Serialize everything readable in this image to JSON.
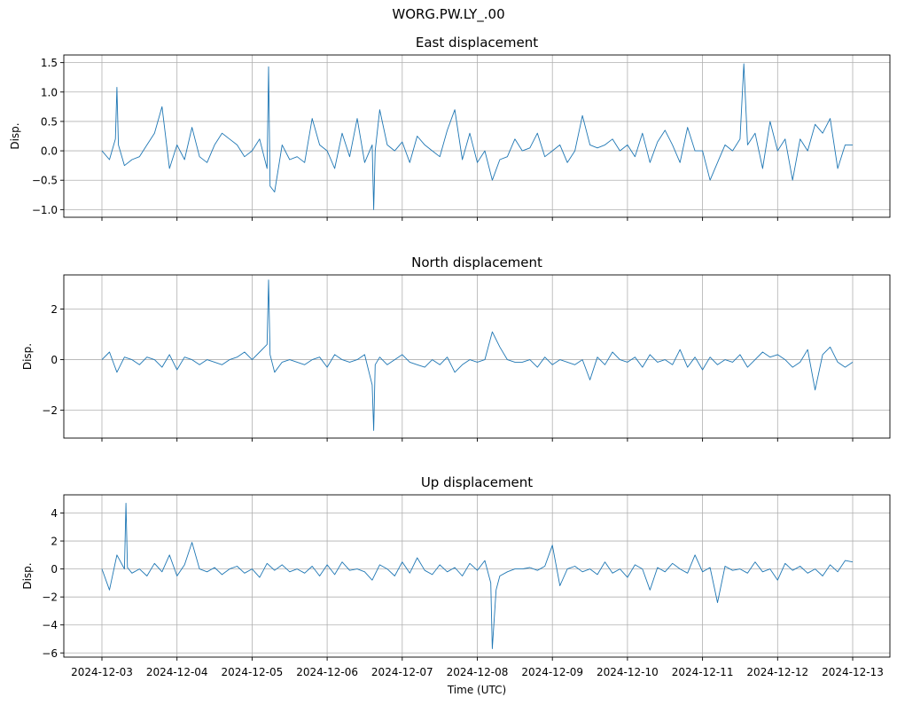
{
  "figure_title": "WORG.PW.LY_.00",
  "chart_data": [
    {
      "type": "line",
      "title": "East displacement",
      "ylabel": "Disp.",
      "xlabel": "",
      "series_color": "#1f77b4",
      "grid": true,
      "xlim": [
        0,
        10
      ],
      "ylim": [
        -1.13,
        1.63
      ],
      "yticks": [
        -1.0,
        -0.5,
        0.0,
        0.5,
        1.0,
        1.5
      ],
      "ytick_labels": [
        "−1.0",
        "−0.5",
        "0.0",
        "0.5",
        "1.0",
        "1.5"
      ],
      "x": [
        0.0,
        0.1,
        0.18,
        0.2,
        0.22,
        0.3,
        0.4,
        0.5,
        0.6,
        0.7,
        0.8,
        0.9,
        1.0,
        1.1,
        1.2,
        1.3,
        1.4,
        1.5,
        1.6,
        1.7,
        1.8,
        1.9,
        2.0,
        2.1,
        2.2,
        2.22,
        2.24,
        2.3,
        2.4,
        2.5,
        2.6,
        2.7,
        2.8,
        2.9,
        3.0,
        3.1,
        3.2,
        3.3,
        3.4,
        3.5,
        3.6,
        3.62,
        3.64,
        3.7,
        3.8,
        3.9,
        4.0,
        4.1,
        4.2,
        4.3,
        4.4,
        4.5,
        4.6,
        4.7,
        4.8,
        4.9,
        5.0,
        5.1,
        5.2,
        5.3,
        5.4,
        5.5,
        5.6,
        5.7,
        5.8,
        5.9,
        6.0,
        6.1,
        6.2,
        6.3,
        6.4,
        6.5,
        6.6,
        6.7,
        6.8,
        6.9,
        7.0,
        7.1,
        7.2,
        7.3,
        7.4,
        7.5,
        7.6,
        7.7,
        7.8,
        7.9,
        8.0,
        8.1,
        8.2,
        8.3,
        8.4,
        8.5,
        8.55,
        8.6,
        8.7,
        8.8,
        8.9,
        9.0,
        9.1,
        9.2,
        9.3,
        9.4,
        9.5,
        9.6,
        9.7,
        9.8,
        9.9,
        10.0
      ],
      "values": [
        0.0,
        -0.15,
        0.2,
        1.08,
        0.1,
        -0.25,
        -0.15,
        -0.1,
        0.1,
        0.3,
        0.75,
        -0.3,
        0.1,
        -0.15,
        0.4,
        -0.1,
        -0.2,
        0.1,
        0.3,
        0.2,
        0.1,
        -0.1,
        0.0,
        0.2,
        -0.3,
        1.43,
        -0.6,
        -0.7,
        0.1,
        -0.15,
        -0.1,
        -0.2,
        0.55,
        0.1,
        0.0,
        -0.3,
        0.3,
        -0.1,
        0.55,
        -0.2,
        0.1,
        -1.0,
        0.0,
        0.7,
        0.1,
        0.0,
        0.15,
        -0.2,
        0.25,
        0.1,
        0.0,
        -0.1,
        0.35,
        0.7,
        -0.15,
        0.3,
        -0.2,
        0.0,
        -0.5,
        -0.15,
        -0.1,
        0.2,
        0.0,
        0.05,
        0.3,
        -0.1,
        0.0,
        0.1,
        -0.2,
        0.0,
        0.6,
        0.1,
        0.05,
        0.1,
        0.2,
        0.0,
        0.1,
        -0.1,
        0.3,
        -0.2,
        0.15,
        0.35,
        0.1,
        -0.2,
        0.4,
        0.0,
        0.0,
        -0.5,
        -0.2,
        0.1,
        0.0,
        0.2,
        1.48,
        0.1,
        0.3,
        -0.3,
        0.5,
        0.0,
        0.2,
        -0.5,
        0.2,
        0.0,
        0.45,
        0.3,
        0.55,
        -0.3,
        0.1,
        0.1
      ]
    },
    {
      "type": "line",
      "title": "North displacement",
      "ylabel": "Disp.",
      "xlabel": "",
      "series_color": "#1f77b4",
      "grid": true,
      "xlim": [
        0,
        10
      ],
      "ylim": [
        -3.1,
        3.35
      ],
      "yticks": [
        -2,
        0,
        2
      ],
      "ytick_labels": [
        "−2",
        "0",
        "2"
      ],
      "x": [
        0.0,
        0.1,
        0.2,
        0.3,
        0.4,
        0.5,
        0.6,
        0.7,
        0.8,
        0.9,
        1.0,
        1.1,
        1.2,
        1.3,
        1.4,
        1.5,
        1.6,
        1.7,
        1.8,
        1.9,
        2.0,
        2.1,
        2.2,
        2.22,
        2.24,
        2.3,
        2.4,
        2.5,
        2.6,
        2.7,
        2.8,
        2.9,
        3.0,
        3.1,
        3.2,
        3.3,
        3.4,
        3.5,
        3.6,
        3.62,
        3.64,
        3.7,
        3.8,
        3.9,
        4.0,
        4.1,
        4.2,
        4.3,
        4.4,
        4.5,
        4.6,
        4.7,
        4.8,
        4.9,
        5.0,
        5.1,
        5.2,
        5.3,
        5.4,
        5.5,
        5.6,
        5.7,
        5.8,
        5.9,
        6.0,
        6.1,
        6.2,
        6.3,
        6.4,
        6.5,
        6.6,
        6.7,
        6.8,
        6.9,
        7.0,
        7.1,
        7.2,
        7.3,
        7.4,
        7.5,
        7.6,
        7.7,
        7.8,
        7.9,
        8.0,
        8.1,
        8.2,
        8.3,
        8.4,
        8.5,
        8.6,
        8.7,
        8.8,
        8.9,
        9.0,
        9.1,
        9.2,
        9.3,
        9.4,
        9.5,
        9.6,
        9.7,
        9.8,
        9.9,
        10.0
      ],
      "values": [
        0.0,
        0.3,
        -0.5,
        0.1,
        0.0,
        -0.2,
        0.1,
        0.0,
        -0.3,
        0.2,
        -0.4,
        0.1,
        0.0,
        -0.2,
        0.0,
        -0.1,
        -0.2,
        0.0,
        0.1,
        0.3,
        0.0,
        0.3,
        0.6,
        3.15,
        0.2,
        -0.5,
        -0.1,
        0.0,
        -0.1,
        -0.2,
        0.0,
        0.1,
        -0.3,
        0.2,
        0.0,
        -0.1,
        0.0,
        0.2,
        -1.0,
        -2.8,
        -0.2,
        0.1,
        -0.2,
        0.0,
        0.2,
        -0.1,
        -0.2,
        -0.3,
        0.0,
        -0.2,
        0.1,
        -0.5,
        -0.2,
        0.0,
        -0.1,
        0.0,
        1.1,
        0.5,
        0.0,
        -0.1,
        -0.1,
        0.0,
        -0.3,
        0.1,
        -0.2,
        0.0,
        -0.1,
        -0.2,
        0.0,
        -0.8,
        0.1,
        -0.2,
        0.3,
        0.0,
        -0.1,
        0.1,
        -0.3,
        0.2,
        -0.1,
        0.0,
        -0.2,
        0.4,
        -0.3,
        0.1,
        -0.4,
        0.1,
        -0.2,
        0.0,
        -0.1,
        0.2,
        -0.3,
        0.0,
        0.3,
        0.1,
        0.2,
        0.0,
        -0.3,
        -0.1,
        0.4,
        -1.2,
        0.2,
        0.5,
        -0.1,
        -0.3,
        -0.1
      ]
    },
    {
      "type": "line",
      "title": "Up displacement",
      "ylabel": "Disp.",
      "xlabel": "Time (UTC)",
      "series_color": "#1f77b4",
      "grid": true,
      "xlim": [
        0,
        10
      ],
      "ylim": [
        -6.3,
        5.3
      ],
      "yticks": [
        -6,
        -4,
        -2,
        0,
        2,
        4
      ],
      "ytick_labels": [
        "−6",
        "−4",
        "−2",
        "0",
        "2",
        "4"
      ],
      "x": [
        0.0,
        0.1,
        0.2,
        0.3,
        0.32,
        0.34,
        0.4,
        0.5,
        0.6,
        0.7,
        0.8,
        0.9,
        1.0,
        1.1,
        1.2,
        1.3,
        1.4,
        1.5,
        1.6,
        1.7,
        1.8,
        1.9,
        2.0,
        2.1,
        2.2,
        2.3,
        2.4,
        2.5,
        2.6,
        2.7,
        2.8,
        2.9,
        3.0,
        3.1,
        3.2,
        3.3,
        3.4,
        3.5,
        3.6,
        3.7,
        3.8,
        3.9,
        4.0,
        4.1,
        4.2,
        4.3,
        4.4,
        4.5,
        4.6,
        4.7,
        4.8,
        4.9,
        5.0,
        5.1,
        5.18,
        5.2,
        5.25,
        5.3,
        5.4,
        5.5,
        5.6,
        5.7,
        5.8,
        5.9,
        6.0,
        6.1,
        6.2,
        6.3,
        6.4,
        6.5,
        6.6,
        6.7,
        6.8,
        6.9,
        7.0,
        7.1,
        7.2,
        7.3,
        7.4,
        7.5,
        7.6,
        7.7,
        7.8,
        7.9,
        8.0,
        8.1,
        8.2,
        8.3,
        8.4,
        8.5,
        8.6,
        8.7,
        8.8,
        8.9,
        9.0,
        9.1,
        9.2,
        9.3,
        9.4,
        9.5,
        9.6,
        9.7,
        9.8,
        9.9,
        10.0
      ],
      "values": [
        0.0,
        -1.5,
        1.0,
        0.0,
        4.7,
        0.1,
        -0.3,
        0.0,
        -0.5,
        0.4,
        -0.2,
        1.0,
        -0.5,
        0.3,
        1.9,
        0.0,
        -0.2,
        0.1,
        -0.4,
        0.0,
        0.2,
        -0.3,
        0.0,
        -0.6,
        0.4,
        -0.1,
        0.3,
        -0.2,
        0.0,
        -0.3,
        0.2,
        -0.5,
        0.3,
        -0.4,
        0.5,
        -0.1,
        0.0,
        -0.2,
        -0.8,
        0.3,
        0.0,
        -0.5,
        0.5,
        -0.3,
        0.8,
        -0.1,
        -0.4,
        0.3,
        -0.2,
        0.1,
        -0.5,
        0.4,
        -0.1,
        0.6,
        -1.0,
        -5.7,
        -1.5,
        -0.5,
        -0.2,
        0.0,
        0.0,
        0.1,
        -0.1,
        0.2,
        1.7,
        -1.2,
        0.0,
        0.2,
        -0.2,
        0.0,
        -0.4,
        0.5,
        -0.3,
        0.0,
        -0.6,
        0.3,
        0.0,
        -1.5,
        0.1,
        -0.2,
        0.4,
        0.0,
        -0.3,
        1.0,
        -0.2,
        0.1,
        -2.4,
        0.2,
        -0.1,
        0.0,
        -0.3,
        0.5,
        -0.2,
        0.0,
        -0.8,
        0.4,
        -0.1,
        0.2,
        -0.3,
        0.0,
        -0.5,
        0.3,
        -0.2,
        0.6,
        0.5
      ]
    }
  ],
  "x_ticks": [
    "2024-12-03",
    "2024-12-04",
    "2024-12-05",
    "2024-12-06",
    "2024-12-07",
    "2024-12-08",
    "2024-12-09",
    "2024-12-10",
    "2024-12-11",
    "2024-12-12",
    "2024-12-13"
  ]
}
